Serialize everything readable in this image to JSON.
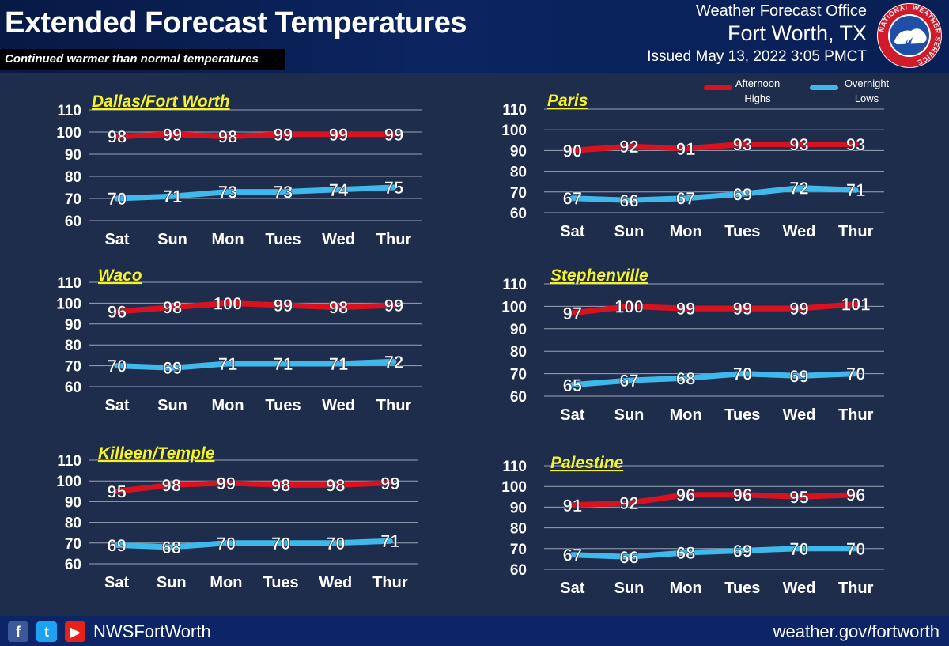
{
  "header": {
    "title": "Extended Forecast Temperatures",
    "subtitle": "Continued warmer than normal temperatures",
    "office_name": "Weather Forecast Office",
    "office_city": "Fort Worth, TX",
    "issued": "Issued May 13, 2022 3:05 PMCT",
    "logo_ring_text": "NATIONAL WEATHER SERVICE"
  },
  "legend": {
    "highs_label_line1": "Afternoon",
    "highs_label_line2": "Highs",
    "lows_label_line1": "Overnight",
    "lows_label_line2": "Lows"
  },
  "colors": {
    "highs": "#d9121f",
    "lows": "#3fb8ec",
    "grid": "#9aa3b5",
    "city_label": "#f5f226",
    "background": "#1f2d4d"
  },
  "footer": {
    "handle": "NWSFortWorth",
    "url": "weather.gov/fortworth",
    "icons": [
      "facebook-icon",
      "twitter-icon",
      "youtube-icon"
    ]
  },
  "chart_data": [
    {
      "type": "line",
      "title": "Dallas/Fort Worth",
      "categories": [
        "Sat",
        "Sun",
        "Mon",
        "Tues",
        "Wed",
        "Thur"
      ],
      "yticks": [
        60,
        70,
        80,
        90,
        100,
        110
      ],
      "ylim": [
        60,
        110
      ],
      "grid": true,
      "series": [
        {
          "name": "Afternoon Highs",
          "values": [
            98,
            99,
            98,
            99,
            99,
            99
          ]
        },
        {
          "name": "Overnight Lows",
          "values": [
            70,
            71,
            73,
            73,
            74,
            75
          ]
        }
      ]
    },
    {
      "type": "line",
      "title": "Paris",
      "categories": [
        "Sat",
        "Sun",
        "Mon",
        "Tues",
        "Wed",
        "Thur"
      ],
      "yticks": [
        60,
        70,
        80,
        90,
        100,
        110
      ],
      "ylim": [
        60,
        110
      ],
      "grid": true,
      "series": [
        {
          "name": "Afternoon Highs",
          "values": [
            90,
            92,
            91,
            93,
            93,
            93
          ]
        },
        {
          "name": "Overnight Lows",
          "values": [
            67,
            66,
            67,
            69,
            72,
            71
          ]
        }
      ]
    },
    {
      "type": "line",
      "title": "Waco",
      "categories": [
        "Sat",
        "Sun",
        "Mon",
        "Tues",
        "Wed",
        "Thur"
      ],
      "yticks": [
        60,
        70,
        80,
        90,
        100,
        110
      ],
      "ylim": [
        60,
        110
      ],
      "grid": true,
      "series": [
        {
          "name": "Afternoon Highs",
          "values": [
            96,
            98,
            100,
            99,
            98,
            99
          ]
        },
        {
          "name": "Overnight Lows",
          "values": [
            70,
            69,
            71,
            71,
            71,
            72
          ]
        }
      ]
    },
    {
      "type": "line",
      "title": "Stephenville",
      "categories": [
        "Sat",
        "Sun",
        "Mon",
        "Tues",
        "Wed",
        "Thur"
      ],
      "yticks": [
        60,
        70,
        80,
        90,
        100,
        110
      ],
      "ylim": [
        60,
        110
      ],
      "grid": true,
      "series": [
        {
          "name": "Afternoon Highs",
          "values": [
            97,
            100,
            99,
            99,
            99,
            101
          ]
        },
        {
          "name": "Overnight Lows",
          "values": [
            65,
            67,
            68,
            70,
            69,
            70
          ]
        }
      ]
    },
    {
      "type": "line",
      "title": "Killeen/Temple",
      "categories": [
        "Sat",
        "Sun",
        "Mon",
        "Tues",
        "Wed",
        "Thur"
      ],
      "yticks": [
        60,
        70,
        80,
        90,
        100,
        110
      ],
      "ylim": [
        60,
        110
      ],
      "grid": true,
      "series": [
        {
          "name": "Afternoon Highs",
          "values": [
            95,
            98,
            99,
            98,
            98,
            99
          ]
        },
        {
          "name": "Overnight Lows",
          "values": [
            69,
            68,
            70,
            70,
            70,
            71
          ]
        }
      ]
    },
    {
      "type": "line",
      "title": "Palestine",
      "categories": [
        "Sat",
        "Sun",
        "Mon",
        "Tues",
        "Wed",
        "Thur"
      ],
      "yticks": [
        60,
        70,
        80,
        90,
        100,
        110
      ],
      "ylim": [
        60,
        110
      ],
      "grid": true,
      "series": [
        {
          "name": "Afternoon Highs",
          "values": [
            91,
            92,
            96,
            96,
            95,
            96
          ]
        },
        {
          "name": "Overnight Lows",
          "values": [
            67,
            66,
            68,
            69,
            70,
            70
          ]
        }
      ]
    }
  ]
}
